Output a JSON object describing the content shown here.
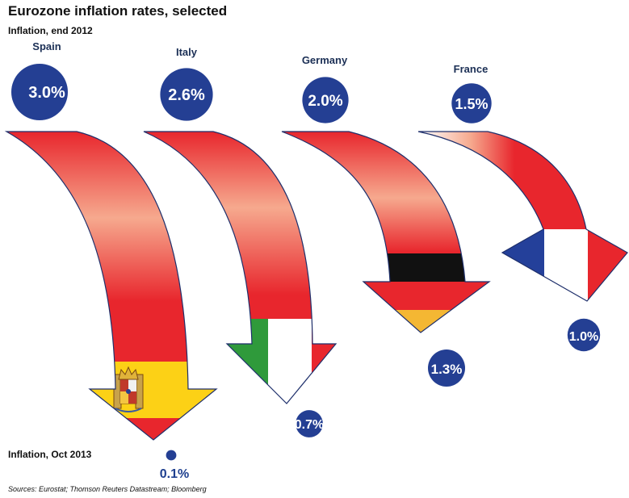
{
  "header": {
    "title": "Eurozone inflation rates, selected",
    "start_label": "Inflation, end 2012",
    "end_label": "Inflation, Oct 2013",
    "source": "Sources: Eurostat; Thomson Reuters Datastream; Bloomberg"
  },
  "colors": {
    "bubble": "#243f93",
    "arrow_red": "#e8262d",
    "arrow_light": "#f7b7a0",
    "arrow_outline": "#1e2f6b"
  },
  "chart_data": {
    "type": "arrow-bubble",
    "title": "Eurozone inflation rates, selected",
    "unit": "%",
    "series_start_name": "Inflation, end 2012",
    "series_end_name": "Inflation, Oct 2013",
    "categories": [
      "Spain",
      "Italy",
      "Germany",
      "France"
    ],
    "start_values": [
      3.0,
      2.6,
      2.0,
      1.5
    ],
    "end_values": [
      0.1,
      0.7,
      1.3,
      1.0
    ],
    "start_labels": [
      "3.0%",
      "2.6%",
      "2.0%",
      "1.5%"
    ],
    "end_labels": [
      "0.1%",
      "0.7%",
      "1.3%",
      "1.0%"
    ],
    "flags": [
      "spain-flag",
      "italy-flag",
      "germany-flag",
      "france-flag"
    ]
  }
}
